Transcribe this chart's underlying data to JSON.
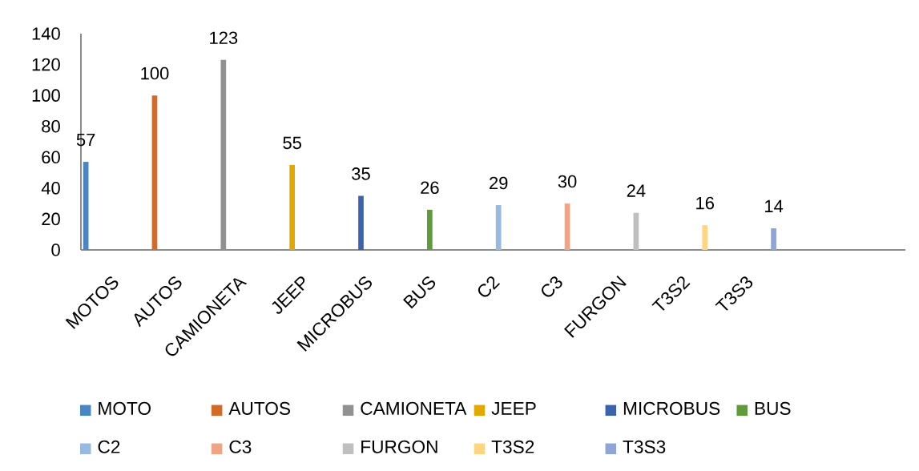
{
  "chart_data": {
    "type": "bar",
    "categories": [
      "MOTOS",
      "AUTOS",
      "CAMIONETA",
      "JEEP",
      "MICROBUS",
      "BUS",
      "C2",
      "C3",
      "FURGON",
      "T3S2",
      "T3S3",
      null,
      null
    ],
    "series": [
      {
        "name": "MOTO",
        "color": "#4a86c1",
        "values": [
          57,
          null,
          null,
          null,
          null,
          null,
          null,
          null,
          null,
          null,
          null,
          null,
          null
        ]
      },
      {
        "name": "AUTOS",
        "color": "#d26a2a",
        "values": [
          null,
          100,
          null,
          null,
          null,
          null,
          null,
          null,
          null,
          null,
          null,
          null,
          null
        ]
      },
      {
        "name": "CAMIONETA",
        "color": "#919191",
        "values": [
          null,
          null,
          123,
          null,
          null,
          null,
          null,
          null,
          null,
          null,
          null,
          null,
          null
        ]
      },
      {
        "name": "JEEP",
        "color": "#e0a800",
        "values": [
          null,
          null,
          null,
          55,
          null,
          null,
          null,
          null,
          null,
          null,
          null,
          null,
          null
        ]
      },
      {
        "name": "MICROBUS",
        "color": "#3b64ad",
        "values": [
          null,
          null,
          null,
          null,
          35,
          null,
          null,
          null,
          null,
          null,
          null,
          null,
          null
        ]
      },
      {
        "name": "BUS",
        "color": "#5f9a3d",
        "values": [
          null,
          null,
          null,
          null,
          null,
          26,
          null,
          null,
          null,
          null,
          null,
          null,
          null
        ]
      },
      {
        "name": "C2",
        "color": "#98b9e0",
        "values": [
          null,
          null,
          null,
          null,
          null,
          null,
          29,
          null,
          null,
          null,
          null,
          null,
          null
        ]
      },
      {
        "name": "C3",
        "color": "#f0a486",
        "values": [
          null,
          null,
          null,
          null,
          null,
          null,
          null,
          30,
          null,
          null,
          null,
          null,
          null
        ]
      },
      {
        "name": "FURGON",
        "color": "#bfbfbf",
        "values": [
          null,
          null,
          null,
          null,
          null,
          null,
          null,
          null,
          24,
          null,
          null,
          null,
          null
        ]
      },
      {
        "name": "T3S2",
        "color": "#ffd584",
        "values": [
          null,
          null,
          null,
          null,
          null,
          null,
          null,
          null,
          null,
          16,
          null,
          null,
          null
        ]
      },
      {
        "name": "T3S3",
        "color": "#8ea5d5",
        "values": [
          null,
          null,
          null,
          null,
          null,
          null,
          null,
          null,
          null,
          null,
          14,
          null,
          null
        ]
      }
    ],
    "ylim": [
      0,
      140
    ],
    "yticks": [
      0,
      20,
      40,
      60,
      80,
      100,
      120,
      140
    ],
    "data_labels": true,
    "legend": "bottom"
  }
}
